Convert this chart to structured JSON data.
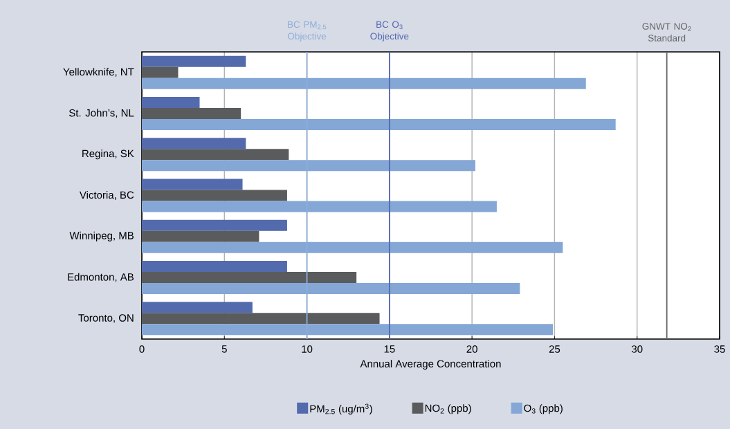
{
  "chart_data": {
    "type": "bar",
    "orientation": "horizontal",
    "xlabel": "Annual Average Concentration",
    "categories": [
      "Yellowknife, NT",
      "St. John’s, NL",
      "Regina, SK",
      "Victoria, BC",
      "Winnipeg, MB",
      "Edmonton, AB",
      "Toronto, ON"
    ],
    "series": [
      {
        "name": "PM$_{2.5}$ (ug/m$^{3}$)",
        "color": "#536aad",
        "values": [
          6.3,
          3.5,
          6.3,
          6.1,
          8.8,
          8.8,
          6.7
        ]
      },
      {
        "name": "NO$_{2}$ (ppb)",
        "color": "#5a5b5d",
        "values": [
          2.2,
          6.0,
          8.9,
          8.8,
          7.1,
          13.0,
          14.4
        ]
      },
      {
        "name": "O$_{3}$ (ppb)",
        "color": "#84a7d6",
        "values": [
          26.9,
          28.7,
          20.2,
          21.5,
          25.5,
          22.9,
          24.9
        ]
      }
    ],
    "xlim": [
      0,
      35
    ],
    "xticks": [
      0,
      5,
      10,
      15,
      20,
      25,
      30,
      35
    ],
    "grid": "x",
    "legend": "bottom",
    "ref_lines": [
      {
        "axis": "x",
        "value": 10,
        "label": "BC PM$_{2.5}$ Objective",
        "color": "#8eaedb"
      },
      {
        "axis": "x",
        "value": 15,
        "label": "BC O$_{3}$ Objective",
        "color": "#5468b0"
      },
      {
        "axis": "x",
        "value": 31.8,
        "label": "GNWT NO$_{2}$ Standard",
        "color": "#666666"
      }
    ]
  }
}
